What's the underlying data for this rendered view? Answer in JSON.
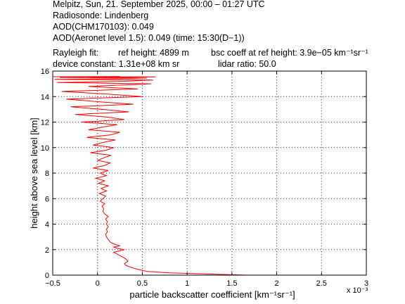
{
  "header": {
    "line1": "Melpitz, Sun, 21. September 2025, 00:00 – 01:27 UTC",
    "line2": "Radiosonde: Lindenberg",
    "line3": "AOD(CHM170103): 0.049",
    "line4": "AOD(Aeronet level 1.5): 0.049   (time: 15:30(D−1))",
    "line5_a": "Rayleigh fit:",
    "line5_b": "ref height: 4899 m",
    "line5_c": "bsc coeff at ref height: 3.9e−05 km⁻¹sr⁻¹",
    "line6_a": "device constant: 1.31e+08 km sr",
    "line6_b": "lidar ratio: 50.0"
  },
  "colors": {
    "series": "#ff0000",
    "axes": "#000000",
    "grid": "#000000"
  },
  "chart_data": {
    "type": "line",
    "xlabel": "particle backscatter coefficient [km⁻¹sr⁻¹]",
    "ylabel": "height above sea level [km]",
    "x_multiplier": "x 10⁻³",
    "xlim": [
      -0.5,
      3
    ],
    "ylim": [
      0,
      16
    ],
    "xticks": [
      -0.5,
      0,
      0.5,
      1,
      1.5,
      2,
      2.5,
      3
    ],
    "xtick_labels": [
      "−0.5",
      "0",
      "0.5",
      "1",
      "1.5",
      "2",
      "2.5",
      "3"
    ],
    "yticks": [
      0,
      2,
      4,
      6,
      8,
      10,
      12,
      14,
      16
    ],
    "ytick_labels": [
      "0",
      "2",
      "4",
      "6",
      "8",
      "10",
      "12",
      "14",
      "16"
    ],
    "grid": true,
    "series": [
      {
        "x": [
          1.67,
          1.2,
          0.8,
          0.55,
          0.45,
          0.38,
          0.32,
          0.3,
          0.34,
          0.31,
          0.26,
          0.22,
          0.18,
          0.24,
          0.3,
          0.22,
          0.18,
          0.25,
          0.18,
          0.14,
          0.12,
          0.1,
          0.09,
          0.11,
          0.1,
          0.12,
          0.1,
          0.11,
          0.09,
          0.12,
          0.08,
          0.06,
          0.07,
          0.05,
          0.08,
          0.03,
          0.06,
          0.09,
          0.02,
          0.1,
          0.04,
          0.12,
          0.01,
          0.08,
          -0.02,
          0.1,
          0.03,
          0.12,
          -0.05,
          0.08,
          0.14,
          0.0,
          0.07,
          0.15,
          -0.08,
          0.1,
          0.18,
          -0.05,
          0.06,
          0.2,
          -0.12,
          0.15,
          0.25,
          -0.1,
          0.05,
          0.22,
          -0.18,
          0.3,
          0.1,
          -0.25,
          0.35,
          0.05,
          -0.3,
          0.4,
          0.0,
          -0.35,
          0.5,
          0.1,
          -0.4,
          0.45,
          -0.1,
          0.6,
          -0.45,
          0.3,
          0.62,
          -0.48,
          0.2,
          0.55,
          -0.42,
          0.35,
          0.65,
          -0.5,
          0.25
        ],
        "y": [
          0.0,
          0.1,
          0.18,
          0.3,
          0.45,
          0.6,
          0.75,
          0.9,
          1.1,
          1.3,
          1.5,
          1.65,
          1.8,
          1.9,
          2.0,
          2.1,
          2.2,
          2.3,
          2.45,
          2.6,
          2.8,
          3.0,
          3.2,
          3.4,
          3.6,
          3.8,
          4.0,
          4.2,
          4.4,
          4.6,
          4.8,
          5.0,
          5.2,
          5.4,
          5.6,
          5.8,
          6.0,
          6.2,
          6.4,
          6.6,
          6.8,
          7.0,
          7.2,
          7.4,
          7.6,
          7.8,
          8.0,
          8.2,
          8.4,
          8.6,
          8.8,
          9.0,
          9.2,
          9.4,
          9.6,
          9.8,
          10.0,
          10.2,
          10.4,
          10.6,
          10.8,
          11.0,
          11.2,
          11.4,
          11.6,
          11.8,
          12.0,
          12.2,
          12.4,
          12.6,
          12.8,
          13.0,
          13.2,
          13.4,
          13.6,
          13.8,
          14.0,
          14.2,
          14.4,
          14.6,
          14.8,
          15.0,
          15.1,
          15.2,
          15.3,
          15.35,
          15.4,
          15.45,
          15.5,
          15.52,
          15.55,
          15.56,
          15.57
        ]
      }
    ]
  }
}
